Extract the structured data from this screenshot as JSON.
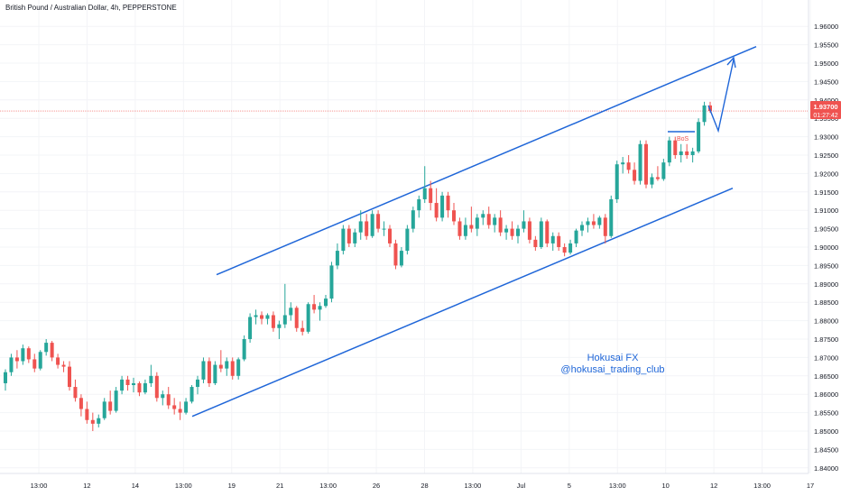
{
  "header": {
    "symbol_title": "British Pound / Australian Dollar, 4h, PEPPERSTONE"
  },
  "colors": {
    "up": "#26a69a",
    "down": "#ef5350",
    "channel": "#1f66d8",
    "annotation": "#1f66d8",
    "price_label_bg": "#ef5350",
    "axis_text": "#131722"
  },
  "chart_data": {
    "type": "candlestick",
    "title": "British Pound / Australian Dollar, 4h, PEPPERSTONE",
    "ylim": [
      1.8375,
      1.9625
    ],
    "y_ticks": [
      "1.96000",
      "1.95500",
      "1.95000",
      "1.94500",
      "1.94000",
      "1.93500",
      "1.93000",
      "1.92500",
      "1.92000",
      "1.91500",
      "1.91000",
      "1.90500",
      "1.90000",
      "1.89500",
      "1.89000",
      "1.88500",
      "1.88000",
      "1.87500",
      "1.87000",
      "1.86500",
      "1.86000",
      "1.85500",
      "1.85000",
      "1.84500",
      "1.84000"
    ],
    "x_ticks": [
      "13:00",
      "12",
      "14",
      "13:00",
      "19",
      "21",
      "13:00",
      "26",
      "28",
      "13:00",
      "Jul",
      "5",
      "13:00",
      "10",
      "12",
      "13:00",
      "17"
    ],
    "candles": [
      [
        1.863,
        1.8668,
        1.861,
        1.866
      ],
      [
        1.866,
        1.871,
        1.865,
        1.87
      ],
      [
        1.87,
        1.872,
        1.867,
        1.869
      ],
      [
        1.869,
        1.8735,
        1.868,
        1.8725
      ],
      [
        1.8725,
        1.873,
        1.8685,
        1.8695
      ],
      [
        1.8695,
        1.871,
        1.866,
        1.867
      ],
      [
        1.867,
        1.872,
        1.8665,
        1.8715
      ],
      [
        1.8715,
        1.875,
        1.8705,
        1.874
      ],
      [
        1.874,
        1.8745,
        1.869,
        1.87
      ],
      [
        1.87,
        1.871,
        1.867,
        1.868
      ],
      [
        1.868,
        1.869,
        1.866,
        1.8675
      ],
      [
        1.8675,
        1.869,
        1.861,
        1.862
      ],
      [
        1.862,
        1.864,
        1.858,
        1.859
      ],
      [
        1.859,
        1.86,
        1.854,
        1.856
      ],
      [
        1.856,
        1.858,
        1.852,
        1.853
      ],
      [
        1.853,
        1.855,
        1.85,
        1.852
      ],
      [
        1.852,
        1.8545,
        1.851,
        1.8535
      ],
      [
        1.8535,
        1.859,
        1.853,
        1.858
      ],
      [
        1.858,
        1.861,
        1.8545,
        1.8555
      ],
      [
        1.8555,
        1.862,
        1.855,
        1.861
      ],
      [
        1.861,
        1.865,
        1.86,
        1.864
      ],
      [
        1.864,
        1.865,
        1.861,
        1.8625
      ],
      [
        1.8625,
        1.8645,
        1.8605,
        1.863
      ],
      [
        1.863,
        1.8635,
        1.8595,
        1.8605
      ],
      [
        1.8605,
        1.864,
        1.86,
        1.863
      ],
      [
        1.863,
        1.868,
        1.862,
        1.865
      ],
      [
        1.865,
        1.866,
        1.858,
        1.859
      ],
      [
        1.859,
        1.861,
        1.857,
        1.86
      ],
      [
        1.86,
        1.862,
        1.856,
        1.857
      ],
      [
        1.857,
        1.859,
        1.8545,
        1.856
      ],
      [
        1.856,
        1.858,
        1.853,
        1.855
      ],
      [
        1.855,
        1.859,
        1.8545,
        1.858
      ],
      [
        1.858,
        1.8625,
        1.8575,
        1.862
      ],
      [
        1.862,
        1.865,
        1.86,
        1.864
      ],
      [
        1.864,
        1.87,
        1.863,
        1.869
      ],
      [
        1.869,
        1.87,
        1.862,
        1.863
      ],
      [
        1.863,
        1.869,
        1.8625,
        1.868
      ],
      [
        1.868,
        1.872,
        1.866,
        1.867
      ],
      [
        1.867,
        1.87,
        1.865,
        1.869
      ],
      [
        1.869,
        1.87,
        1.864,
        1.865
      ],
      [
        1.865,
        1.87,
        1.864,
        1.8695
      ],
      [
        1.8695,
        1.876,
        1.869,
        1.875
      ],
      [
        1.875,
        1.882,
        1.874,
        1.881
      ],
      [
        1.881,
        1.883,
        1.879,
        1.8815
      ],
      [
        1.8815,
        1.8825,
        1.879,
        1.8805
      ],
      [
        1.8805,
        1.882,
        1.879,
        1.8815
      ],
      [
        1.8815,
        1.8825,
        1.877,
        1.878
      ],
      [
        1.878,
        1.88,
        1.875,
        1.879
      ],
      [
        1.879,
        1.89,
        1.878,
        1.8815
      ],
      [
        1.8815,
        1.885,
        1.88,
        1.8835
      ],
      [
        1.8835,
        1.884,
        1.877,
        1.878
      ],
      [
        1.878,
        1.88,
        1.876,
        1.877
      ],
      [
        1.877,
        1.885,
        1.8765,
        1.8845
      ],
      [
        1.8845,
        1.887,
        1.882,
        1.883
      ],
      [
        1.883,
        1.885,
        1.88,
        1.884
      ],
      [
        1.884,
        1.887,
        1.8835,
        1.886
      ],
      [
        1.886,
        1.896,
        1.885,
        1.895
      ],
      [
        1.895,
        1.901,
        1.894,
        1.899
      ],
      [
        1.899,
        1.906,
        1.898,
        1.905
      ],
      [
        1.905,
        1.906,
        1.9,
        1.901
      ],
      [
        1.901,
        1.905,
        1.9,
        1.904
      ],
      [
        1.904,
        1.91,
        1.902,
        1.907
      ],
      [
        1.907,
        1.909,
        1.902,
        1.903
      ],
      [
        1.903,
        1.91,
        1.9025,
        1.909
      ],
      [
        1.909,
        1.91,
        1.904,
        1.905
      ],
      [
        1.905,
        1.907,
        1.903,
        1.905
      ],
      [
        1.905,
        1.906,
        1.9,
        1.901
      ],
      [
        1.901,
        1.902,
        1.894,
        1.895
      ],
      [
        1.895,
        1.9,
        1.8945,
        1.899
      ],
      [
        1.899,
        1.906,
        1.898,
        1.905
      ],
      [
        1.905,
        1.911,
        1.904,
        1.91
      ],
      [
        1.91,
        1.914,
        1.908,
        1.913
      ],
      [
        1.913,
        1.922,
        1.912,
        1.916
      ],
      [
        1.916,
        1.918,
        1.91,
        1.912
      ],
      [
        1.912,
        1.916,
        1.907,
        1.908
      ],
      [
        1.908,
        1.915,
        1.907,
        1.914
      ],
      [
        1.914,
        1.915,
        1.908,
        1.91
      ],
      [
        1.91,
        1.912,
        1.906,
        1.907
      ],
      [
        1.907,
        1.908,
        1.902,
        1.903
      ],
      [
        1.903,
        1.908,
        1.902,
        1.906
      ],
      [
        1.906,
        1.911,
        1.904,
        1.905
      ],
      [
        1.905,
        1.909,
        1.903,
        1.908
      ],
      [
        1.908,
        1.91,
        1.906,
        1.909
      ],
      [
        1.909,
        1.911,
        1.905,
        1.906
      ],
      [
        1.906,
        1.909,
        1.904,
        1.908
      ],
      [
        1.908,
        1.91,
        1.903,
        1.904
      ],
      [
        1.904,
        1.906,
        1.902,
        1.905
      ],
      [
        1.905,
        1.907,
        1.902,
        1.903
      ],
      [
        1.903,
        1.906,
        1.901,
        1.905
      ],
      [
        1.905,
        1.91,
        1.904,
        1.907
      ],
      [
        1.907,
        1.908,
        1.901,
        1.902
      ],
      [
        1.902,
        1.903,
        1.899,
        1.9
      ],
      [
        1.9,
        1.908,
        1.8995,
        1.907
      ],
      [
        1.907,
        1.9075,
        1.9,
        1.901
      ],
      [
        1.901,
        1.904,
        1.899,
        1.903
      ],
      [
        1.903,
        1.904,
        1.899,
        1.9
      ],
      [
        1.9,
        1.901,
        1.8975,
        1.8985
      ],
      [
        1.8985,
        1.902,
        1.898,
        1.901
      ],
      [
        1.901,
        1.905,
        1.9,
        1.9045
      ],
      [
        1.9045,
        1.907,
        1.903,
        1.906
      ],
      [
        1.906,
        1.908,
        1.904,
        1.907
      ],
      [
        1.907,
        1.909,
        1.905,
        1.906
      ],
      [
        1.906,
        1.9085,
        1.905,
        1.908
      ],
      [
        1.908,
        1.909,
        1.901,
        1.903
      ],
      [
        1.903,
        1.914,
        1.9025,
        1.913
      ],
      [
        1.913,
        1.9235,
        1.912,
        1.9225
      ],
      [
        1.9225,
        1.9245,
        1.92,
        1.923
      ],
      [
        1.923,
        1.925,
        1.92,
        1.921
      ],
      [
        1.921,
        1.923,
        1.917,
        1.918
      ],
      [
        1.918,
        1.929,
        1.917,
        1.928
      ],
      [
        1.928,
        1.929,
        1.916,
        1.917
      ],
      [
        1.917,
        1.92,
        1.916,
        1.919
      ],
      [
        1.919,
        1.922,
        1.918,
        1.9185
      ],
      [
        1.9185,
        1.924,
        1.918,
        1.923
      ],
      [
        1.923,
        1.93,
        1.922,
        1.929
      ],
      [
        1.929,
        1.93,
        1.924,
        1.925
      ],
      [
        1.925,
        1.928,
        1.923,
        1.926
      ],
      [
        1.926,
        1.928,
        1.924,
        1.925
      ],
      [
        1.925,
        1.927,
        1.923,
        1.926
      ],
      [
        1.926,
        1.935,
        1.9255,
        1.934
      ],
      [
        1.934,
        1.9395,
        1.933,
        1.9385
      ],
      [
        1.9385,
        1.9395,
        1.9365,
        1.937
      ]
    ],
    "channel_upper": [
      [
        1.8925,
        1.9125
      ],
      [
        1.9545,
        1.9545
      ]
    ],
    "channel_lower": [
      [
        1.854,
        1.854
      ],
      [
        1.916,
        1.916
      ]
    ],
    "current_price": "1.93700",
    "countdown": "01:27:42",
    "bos_label": "BoS",
    "watermark": {
      "line1": "Hokusai FX",
      "line2": "@hokusai_trading_club"
    }
  }
}
